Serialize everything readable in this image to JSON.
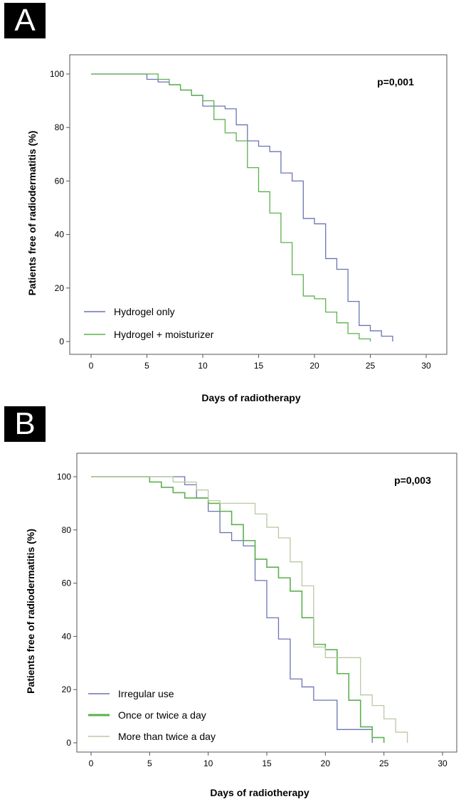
{
  "chart_data": [
    {
      "type": "line",
      "panel": "A",
      "annotation": "p=0,001",
      "xlabel": "Days of radiotherapy",
      "ylabel": "Patients free of radiodermatitis (%)",
      "xlim": [
        0,
        30
      ],
      "ylim": [
        0,
        100
      ],
      "xticks": [
        0,
        5,
        10,
        15,
        20,
        25,
        30
      ],
      "yticks": [
        0,
        20,
        40,
        60,
        80,
        100
      ],
      "grid": false,
      "legend_position": "bottom-left",
      "series": [
        {
          "name": "Hydrogel only",
          "color": "#6b73b4",
          "step": true,
          "x": [
            0,
            5,
            6,
            7,
            8,
            9,
            10,
            12,
            13,
            14,
            15,
            16,
            17,
            18,
            19,
            20,
            21,
            22,
            23,
            24,
            25,
            26,
            27
          ],
          "y": [
            100,
            98,
            97,
            96,
            94,
            92,
            88,
            87,
            81,
            75,
            73,
            71,
            63,
            60,
            46,
            44,
            31,
            27,
            15,
            6,
            4,
            2,
            0
          ]
        },
        {
          "name": "Hydrogel + moisturizer",
          "color": "#5cb14c",
          "step": true,
          "x": [
            0,
            6,
            7,
            8,
            9,
            10,
            11,
            12,
            13,
            14,
            15,
            16,
            17,
            18,
            19,
            20,
            21,
            22,
            23,
            24,
            25
          ],
          "y": [
            100,
            98,
            96,
            94,
            92,
            90,
            83,
            78,
            75,
            65,
            56,
            48,
            37,
            25,
            17,
            16,
            11,
            7,
            3,
            1,
            0
          ]
        }
      ]
    },
    {
      "type": "line",
      "panel": "B",
      "annotation": "p=0,003",
      "xlabel": "Days of radiotherapy",
      "ylabel": "Patients free of radiodermatitis (%)",
      "xlim": [
        0,
        30
      ],
      "ylim": [
        0,
        100
      ],
      "xticks": [
        0,
        5,
        10,
        15,
        20,
        25,
        30
      ],
      "yticks": [
        0,
        20,
        40,
        60,
        80,
        100
      ],
      "grid": false,
      "legend_position": "bottom-left",
      "series": [
        {
          "name": "Irregular use",
          "color": "#6b73b4",
          "step": true,
          "x": [
            0,
            7,
            8,
            9,
            10,
            11,
            12,
            13,
            14,
            15,
            16,
            17,
            18,
            19,
            20,
            21,
            22,
            23,
            24
          ],
          "y": [
            100,
            100,
            97,
            92,
            87,
            79,
            76,
            74,
            61,
            47,
            39,
            24,
            21,
            16,
            16,
            5,
            5,
            5,
            0
          ]
        },
        {
          "name": "Once or twice a day",
          "color": "#5cb14c",
          "step": true,
          "x": [
            0,
            5,
            6,
            7,
            8,
            9,
            10,
            11,
            12,
            13,
            14,
            15,
            16,
            17,
            18,
            19,
            20,
            21,
            22,
            23,
            24,
            25
          ],
          "y": [
            100,
            98,
            96,
            94,
            92,
            92,
            90,
            87,
            82,
            76,
            69,
            66,
            62,
            57,
            47,
            37,
            35,
            26,
            16,
            6,
            2,
            0
          ]
        },
        {
          "name": "More than twice a day",
          "color": "#b9c9a4",
          "step": true,
          "x": [
            0,
            7,
            9,
            10,
            11,
            12,
            13,
            14,
            15,
            16,
            17,
            18,
            19,
            20,
            21,
            22,
            23,
            24,
            25,
            26,
            27
          ],
          "y": [
            100,
            98,
            95,
            91,
            90,
            90,
            90,
            86,
            81,
            77,
            68,
            59,
            36,
            32,
            32,
            32,
            18,
            14,
            9,
            4,
            0
          ]
        }
      ]
    }
  ]
}
